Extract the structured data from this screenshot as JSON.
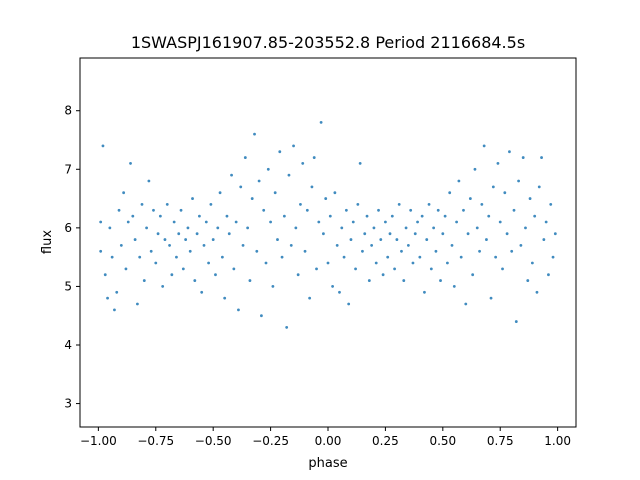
{
  "chart_data": {
    "type": "scatter",
    "title": "1SWASPJ161907.85-203552.8 Period 2116684.5s",
    "xlabel": "phase",
    "ylabel": "flux",
    "xlim": [
      -1.08,
      1.08
    ],
    "ylim": [
      2.6,
      8.9
    ],
    "x_ticks": [
      -1.0,
      -0.75,
      -0.5,
      -0.25,
      0.0,
      0.25,
      0.5,
      0.75,
      1.0
    ],
    "x_tick_labels": [
      "−1.00",
      "−0.75",
      "−0.50",
      "−0.25",
      "0.00",
      "0.25",
      "0.50",
      "0.75",
      "1.00"
    ],
    "y_ticks": [
      3,
      4,
      5,
      6,
      7,
      8
    ],
    "y_tick_labels": [
      "3",
      "4",
      "5",
      "6",
      "7",
      "8"
    ],
    "grid": false,
    "point_color": "#1f77b4",
    "series": [
      {
        "points": [
          [
            -0.99,
            5.6
          ],
          [
            -0.99,
            6.1
          ],
          [
            -0.98,
            7.4
          ],
          [
            -0.97,
            5.2
          ],
          [
            -0.96,
            4.8
          ],
          [
            -0.95,
            6.0
          ],
          [
            -0.94,
            5.5
          ],
          [
            -0.93,
            4.6
          ],
          [
            -0.92,
            4.9
          ],
          [
            -0.91,
            6.3
          ],
          [
            -0.9,
            5.7
          ],
          [
            -0.89,
            6.6
          ],
          [
            -0.88,
            5.3
          ],
          [
            -0.87,
            6.1
          ],
          [
            -0.86,
            7.1
          ],
          [
            -0.85,
            6.2
          ],
          [
            -0.84,
            5.8
          ],
          [
            -0.83,
            4.7
          ],
          [
            -0.82,
            5.5
          ],
          [
            -0.81,
            6.4
          ],
          [
            -0.8,
            5.1
          ],
          [
            -0.79,
            6.0
          ],
          [
            -0.78,
            6.8
          ],
          [
            -0.77,
            5.6
          ],
          [
            -0.76,
            6.3
          ],
          [
            -0.75,
            5.4
          ],
          [
            -0.74,
            5.9
          ],
          [
            -0.73,
            6.2
          ],
          [
            -0.72,
            5.0
          ],
          [
            -0.71,
            5.8
          ],
          [
            -0.7,
            6.4
          ],
          [
            -0.69,
            5.7
          ],
          [
            -0.68,
            5.2
          ],
          [
            -0.67,
            6.1
          ],
          [
            -0.66,
            5.5
          ],
          [
            -0.65,
            5.9
          ],
          [
            -0.64,
            6.3
          ],
          [
            -0.63,
            5.3
          ],
          [
            -0.62,
            5.8
          ],
          [
            -0.61,
            6.0
          ],
          [
            -0.6,
            5.6
          ],
          [
            -0.59,
            6.5
          ],
          [
            -0.58,
            5.1
          ],
          [
            -0.57,
            5.9
          ],
          [
            -0.56,
            6.2
          ],
          [
            -0.55,
            4.9
          ],
          [
            -0.54,
            5.7
          ],
          [
            -0.53,
            6.1
          ],
          [
            -0.52,
            5.4
          ],
          [
            -0.51,
            6.4
          ],
          [
            -0.5,
            5.8
          ],
          [
            -0.49,
            5.2
          ],
          [
            -0.48,
            6.0
          ],
          [
            -0.47,
            6.6
          ],
          [
            -0.46,
            5.5
          ],
          [
            -0.45,
            4.8
          ],
          [
            -0.44,
            6.2
          ],
          [
            -0.43,
            5.9
          ],
          [
            -0.42,
            6.9
          ],
          [
            -0.41,
            5.3
          ],
          [
            -0.4,
            6.1
          ],
          [
            -0.39,
            4.6
          ],
          [
            -0.38,
            6.7
          ],
          [
            -0.37,
            5.7
          ],
          [
            -0.36,
            7.2
          ],
          [
            -0.35,
            6.0
          ],
          [
            -0.34,
            5.1
          ],
          [
            -0.33,
            6.5
          ],
          [
            -0.32,
            7.6
          ],
          [
            -0.31,
            5.6
          ],
          [
            -0.3,
            6.8
          ],
          [
            -0.29,
            4.5
          ],
          [
            -0.28,
            6.3
          ],
          [
            -0.27,
            5.4
          ],
          [
            -0.26,
            7.0
          ],
          [
            -0.25,
            6.1
          ],
          [
            -0.24,
            5.0
          ],
          [
            -0.23,
            6.6
          ],
          [
            -0.22,
            5.8
          ],
          [
            -0.21,
            7.3
          ],
          [
            -0.2,
            5.5
          ],
          [
            -0.19,
            6.2
          ],
          [
            -0.18,
            4.3
          ],
          [
            -0.17,
            6.9
          ],
          [
            -0.16,
            5.7
          ],
          [
            -0.15,
            7.4
          ],
          [
            -0.14,
            6.0
          ],
          [
            -0.13,
            5.2
          ],
          [
            -0.12,
            6.4
          ],
          [
            -0.11,
            7.1
          ],
          [
            -0.1,
            5.6
          ],
          [
            -0.09,
            6.3
          ],
          [
            -0.08,
            4.8
          ],
          [
            -0.07,
            6.7
          ],
          [
            -0.06,
            7.2
          ],
          [
            -0.05,
            5.3
          ],
          [
            -0.04,
            6.1
          ],
          [
            -0.03,
            7.8
          ],
          [
            -0.02,
            5.9
          ],
          [
            -0.01,
            6.5
          ],
          [
            0.0,
            5.4
          ],
          [
            0.01,
            6.2
          ],
          [
            0.02,
            5.0
          ],
          [
            0.03,
            6.6
          ],
          [
            0.04,
            5.7
          ],
          [
            0.05,
            4.9
          ],
          [
            0.06,
            6.0
          ],
          [
            0.07,
            5.5
          ],
          [
            0.08,
            6.3
          ],
          [
            0.09,
            4.7
          ],
          [
            0.1,
            5.8
          ],
          [
            0.11,
            6.1
          ],
          [
            0.12,
            5.3
          ],
          [
            0.13,
            6.4
          ],
          [
            0.14,
            7.1
          ],
          [
            0.15,
            5.6
          ],
          [
            0.16,
            5.9
          ],
          [
            0.17,
            6.2
          ],
          [
            0.18,
            5.1
          ],
          [
            0.19,
            5.7
          ],
          [
            0.2,
            6.0
          ],
          [
            0.21,
            5.4
          ],
          [
            0.22,
            6.3
          ],
          [
            0.23,
            5.8
          ],
          [
            0.24,
            5.2
          ],
          [
            0.25,
            6.1
          ],
          [
            0.26,
            5.5
          ],
          [
            0.27,
            5.9
          ],
          [
            0.28,
            6.2
          ],
          [
            0.29,
            5.3
          ],
          [
            0.3,
            5.8
          ],
          [
            0.31,
            6.4
          ],
          [
            0.32,
            5.6
          ],
          [
            0.33,
            5.1
          ],
          [
            0.34,
            6.0
          ],
          [
            0.35,
            5.7
          ],
          [
            0.36,
            6.3
          ],
          [
            0.37,
            5.4
          ],
          [
            0.38,
            5.9
          ],
          [
            0.39,
            6.1
          ],
          [
            0.4,
            5.5
          ],
          [
            0.41,
            6.2
          ],
          [
            0.42,
            4.9
          ],
          [
            0.43,
            5.8
          ],
          [
            0.44,
            6.4
          ],
          [
            0.45,
            5.3
          ],
          [
            0.46,
            6.0
          ],
          [
            0.47,
            5.6
          ],
          [
            0.48,
            6.3
          ],
          [
            0.49,
            5.1
          ],
          [
            0.5,
            5.9
          ],
          [
            0.51,
            6.2
          ],
          [
            0.52,
            5.4
          ],
          [
            0.53,
            6.6
          ],
          [
            0.54,
            5.7
          ],
          [
            0.55,
            5.0
          ],
          [
            0.56,
            6.1
          ],
          [
            0.57,
            6.8
          ],
          [
            0.58,
            5.5
          ],
          [
            0.59,
            6.3
          ],
          [
            0.6,
            4.7
          ],
          [
            0.61,
            5.9
          ],
          [
            0.62,
            6.5
          ],
          [
            0.63,
            5.2
          ],
          [
            0.64,
            7.0
          ],
          [
            0.65,
            6.0
          ],
          [
            0.66,
            5.6
          ],
          [
            0.67,
            6.4
          ],
          [
            0.68,
            7.4
          ],
          [
            0.69,
            5.8
          ],
          [
            0.7,
            6.2
          ],
          [
            0.71,
            4.8
          ],
          [
            0.72,
            6.7
          ],
          [
            0.73,
            5.5
          ],
          [
            0.74,
            7.1
          ],
          [
            0.75,
            6.1
          ],
          [
            0.76,
            5.3
          ],
          [
            0.77,
            6.6
          ],
          [
            0.78,
            5.9
          ],
          [
            0.79,
            7.3
          ],
          [
            0.8,
            5.6
          ],
          [
            0.81,
            6.3
          ],
          [
            0.82,
            4.4
          ],
          [
            0.83,
            6.8
          ],
          [
            0.84,
            5.7
          ],
          [
            0.85,
            7.2
          ],
          [
            0.86,
            6.0
          ],
          [
            0.87,
            5.1
          ],
          [
            0.88,
            6.5
          ],
          [
            0.89,
            5.4
          ],
          [
            0.9,
            6.2
          ],
          [
            0.91,
            4.9
          ],
          [
            0.92,
            6.7
          ],
          [
            0.93,
            7.2
          ],
          [
            0.94,
            5.8
          ],
          [
            0.95,
            6.1
          ],
          [
            0.96,
            5.2
          ],
          [
            0.97,
            6.4
          ],
          [
            0.98,
            5.5
          ],
          [
            0.99,
            5.9
          ]
        ]
      }
    ]
  }
}
